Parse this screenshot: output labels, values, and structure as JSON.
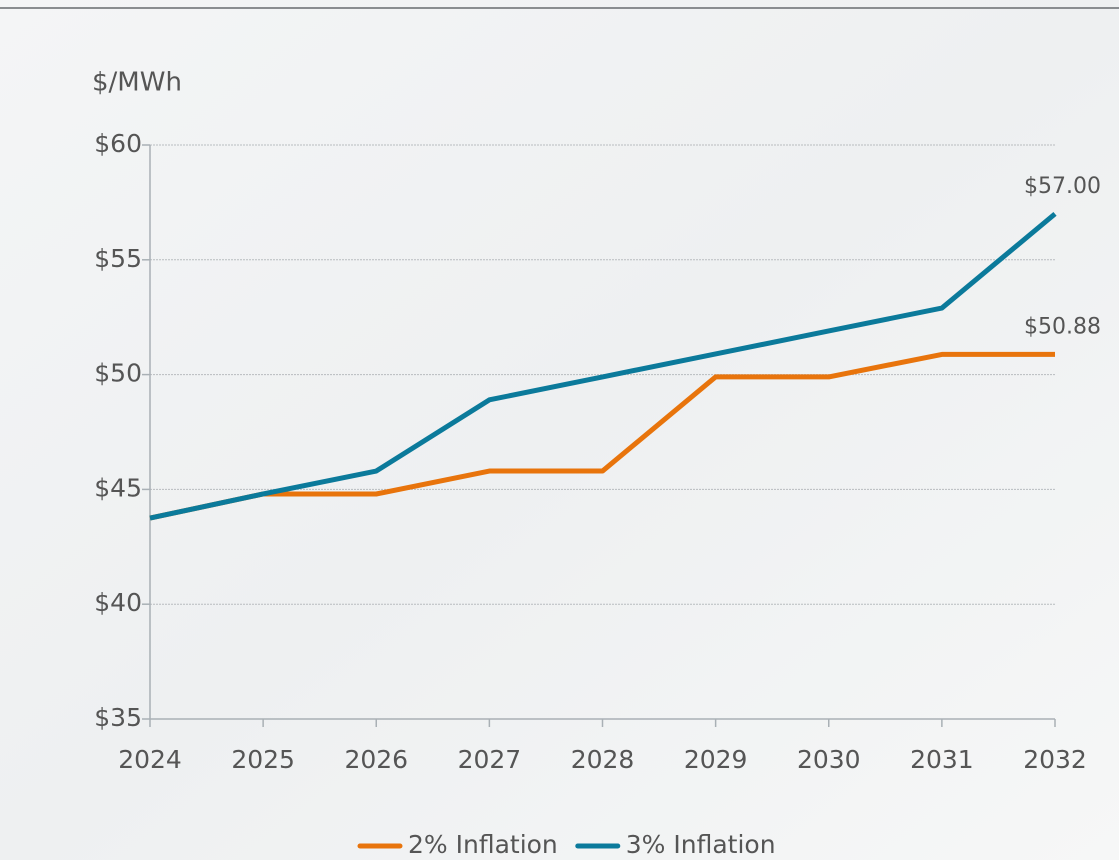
{
  "chart_data": {
    "type": "line",
    "y_axis_label": "$/MWh",
    "x": [
      2024,
      2025,
      2026,
      2027,
      2028,
      2029,
      2030,
      2031,
      2032
    ],
    "xlim": [
      2024,
      2032
    ],
    "xticks": [
      2024,
      2025,
      2026,
      2027,
      2028,
      2029,
      2030,
      2031,
      2032
    ],
    "ylim": [
      35,
      60
    ],
    "yticks": [
      {
        "value": 35,
        "label": "$35"
      },
      {
        "value": 40,
        "label": "$40"
      },
      {
        "value": 45,
        "label": "$45"
      },
      {
        "value": 50,
        "label": "$50"
      },
      {
        "value": 55,
        "label": "$55"
      },
      {
        "value": 60,
        "label": "$60"
      }
    ],
    "grid": true,
    "legend": "bottom",
    "series": [
      {
        "name": "2% Inflation",
        "color": "#e8740c",
        "values": [
          43.75,
          44.8,
          44.8,
          45.8,
          45.8,
          49.9,
          49.9,
          50.88,
          50.88
        ],
        "value_labels": [
          null,
          null,
          null,
          null,
          null,
          null,
          null,
          null,
          "$50.88"
        ]
      },
      {
        "name": "3% Inflation",
        "color": "#0b7a9b",
        "values": [
          43.75,
          44.8,
          45.8,
          48.9,
          49.9,
          50.9,
          51.9,
          52.9,
          57.0
        ],
        "value_labels": [
          null,
          null,
          null,
          null,
          null,
          null,
          null,
          null,
          "$57.00"
        ]
      }
    ]
  }
}
